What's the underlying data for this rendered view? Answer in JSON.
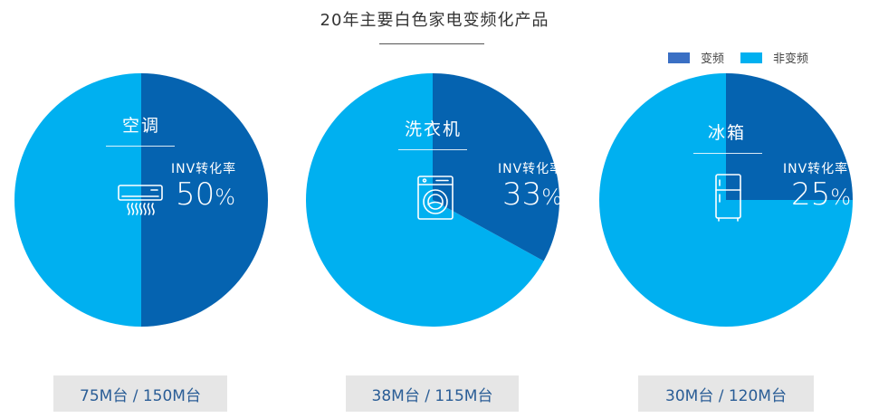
{
  "chart_data": {
    "type": "pie",
    "title": "20年主要白色家电变频化产品",
    "legend": {
      "placement": "top-right",
      "items": [
        {
          "name": "变频",
          "color": "#3A6FC4"
        },
        {
          "name": "非变频",
          "color": "#00B0F0"
        }
      ]
    },
    "charts": [
      {
        "label": "空调",
        "inv_label": "INV转化率",
        "percent": 50,
        "percent_text": "50",
        "count_text": "75M台 / 150M台",
        "icon": "air-conditioner-icon",
        "slices": [
          {
            "name": "变频",
            "value": 50
          },
          {
            "name": "非变频",
            "value": 50
          }
        ]
      },
      {
        "label": "洗衣机",
        "inv_label": "INV转化率",
        "percent": 33,
        "percent_text": "33",
        "count_text": "38M台 / 115M台",
        "icon": "washing-machine-icon",
        "slices": [
          {
            "name": "变频",
            "value": 33
          },
          {
            "name": "非变频",
            "value": 67
          }
        ]
      },
      {
        "label": "冰箱",
        "inv_label": "INV转化率",
        "percent": 25,
        "percent_text": "25",
        "count_text": "30M台 / 120M台",
        "icon": "refrigerator-icon",
        "slices": [
          {
            "name": "变频",
            "value": 25
          },
          {
            "name": "非变频",
            "value": 75
          }
        ]
      }
    ]
  },
  "colors": {
    "inverter_dark": "#0563B0",
    "non_inverter": "#00B0F0",
    "legend_inverter": "#3A6FC4",
    "count_text": "#2A5D96"
  },
  "percent_sign": "%"
}
